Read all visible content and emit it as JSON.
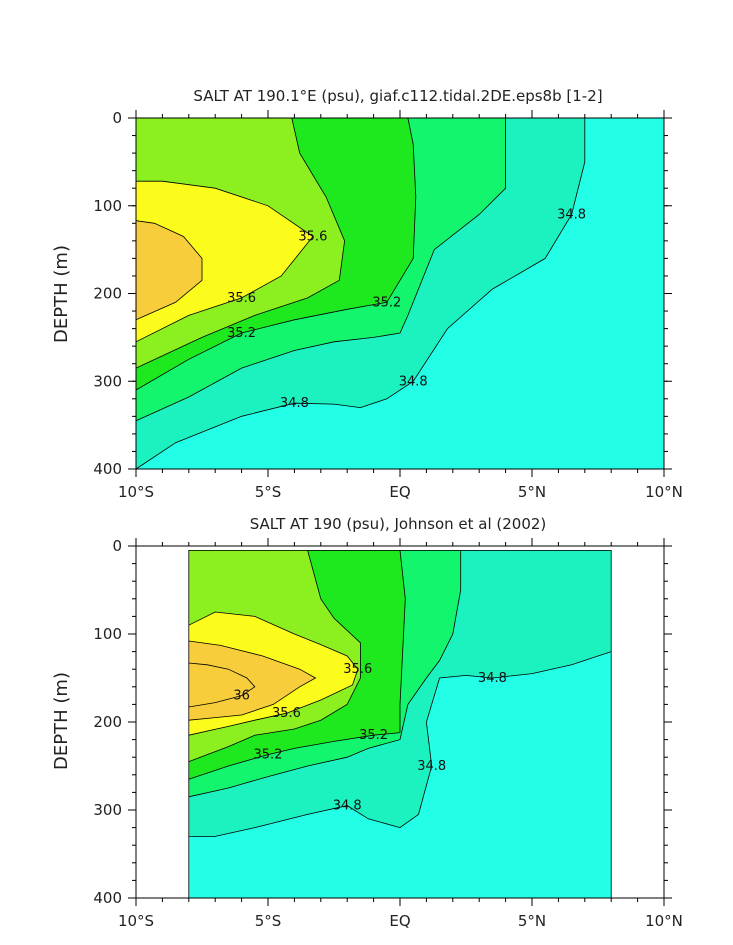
{
  "colors": {
    "s_lt_34_8": "#22ffe6",
    "s_34_8_35_0": "#1cf2c0",
    "s_35_0_35_2": "#14f56e",
    "s_35_2_35_4": "#1ee81e",
    "s_35_4_35_6": "#8cf020",
    "s_35_6_35_8": "#fbfb1c",
    "s_gt_35_8": "#f8cd3c",
    "open_cyan": "#1cf8f8"
  },
  "chart_data": [
    {
      "type": "heatmap",
      "title": "SALT AT 190.1°E (psu), giaf.c112.tidal.2DE.eps8b [1-2]",
      "ylabel": "DEPTH (m)",
      "xlabel": "",
      "x_ticks": [
        "10°S",
        "5°S",
        "EQ",
        "5°N",
        "10°N"
      ],
      "x_tick_values": [
        -10,
        -5,
        0,
        5,
        10
      ],
      "xlim": [
        -10,
        10
      ],
      "y_ticks": [
        "0",
        "100",
        "200",
        "300",
        "400"
      ],
      "y_tick_values": [
        0,
        100,
        200,
        300,
        400
      ],
      "ylim": [
        400,
        0
      ],
      "contour_labels": [
        "35.6",
        "35.6",
        "35.2",
        "35.2",
        "34.8",
        "34.8",
        "34.8"
      ],
      "contours": [
        {
          "level": 34.8,
          "points": [
            [
              -10,
              400
            ],
            [
              -8.5,
              370
            ],
            [
              -6,
              340
            ],
            [
              -4,
              325
            ],
            [
              -2.5,
              326
            ],
            [
              -1.5,
              330
            ],
            [
              -0.5,
              320
            ],
            [
              0.5,
              300
            ],
            [
              1.8,
              240
            ],
            [
              3.5,
              195
            ],
            [
              5.5,
              160
            ],
            [
              6.5,
              110
            ],
            [
              7,
              50
            ],
            [
              7,
              0
            ]
          ]
        },
        {
          "level": 35.0,
          "points": [
            [
              -10,
              345
            ],
            [
              -8,
              318
            ],
            [
              -6,
              285
            ],
            [
              -4,
              265
            ],
            [
              -2.5,
              255
            ],
            [
              -1,
              250
            ],
            [
              0,
              245
            ],
            [
              0.3,
              225
            ],
            [
              1.3,
              150
            ],
            [
              3,
              110
            ],
            [
              4,
              80
            ],
            [
              4,
              0
            ]
          ]
        },
        {
          "level": 35.2,
          "points": [
            [
              -10,
              310
            ],
            [
              -8,
              275
            ],
            [
              -6,
              245
            ],
            [
              -4,
              230
            ],
            [
              -2,
              218
            ],
            [
              -0.5,
              210
            ],
            [
              0.5,
              160
            ],
            [
              0.6,
              90
            ],
            [
              0.5,
              30
            ],
            [
              0.3,
              0
            ]
          ]
        },
        {
          "level": 35.4,
          "points": [
            [
              -10,
              285
            ],
            [
              -7.5,
              250
            ],
            [
              -5.5,
              225
            ],
            [
              -3.5,
              205
            ],
            [
              -2.3,
              185
            ],
            [
              -2.1,
              140
            ],
            [
              -2.8,
              90
            ],
            [
              -3.8,
              40
            ],
            [
              -4.1,
              0
            ]
          ]
        },
        {
          "level": 35.6,
          "points": [
            [
              -10,
              255
            ],
            [
              -8,
              225
            ],
            [
              -6,
              205
            ],
            [
              -4.5,
              180
            ],
            [
              -3.3,
              135
            ],
            [
              -5,
              100
            ],
            [
              -7,
              80
            ],
            [
              -9,
              72
            ],
            [
              -10,
              72
            ]
          ]
        },
        {
          "level": 35.8,
          "points": [
            [
              -10,
              230
            ],
            [
              -8.5,
              210
            ],
            [
              -7.5,
              185
            ],
            [
              -7.5,
              160
            ],
            [
              -8.2,
              135
            ],
            [
              -9.3,
              120
            ],
            [
              -10,
              117
            ]
          ]
        }
      ],
      "data_extent_x": [
        -10,
        10
      ],
      "data_extent_y": [
        0,
        400
      ]
    },
    {
      "type": "heatmap",
      "title": "SALT AT 190 (psu), Johnson et al (2002)",
      "ylabel": "DEPTH (m)",
      "xlabel": "",
      "x_ticks": [
        "10°S",
        "5°S",
        "EQ",
        "5°N",
        "10°N"
      ],
      "x_tick_values": [
        -10,
        -5,
        0,
        5,
        10
      ],
      "xlim": [
        -10,
        10
      ],
      "y_ticks": [
        "0",
        "100",
        "200",
        "300",
        "400"
      ],
      "y_tick_values": [
        0,
        100,
        200,
        300,
        400
      ],
      "ylim": [
        400,
        0
      ],
      "contour_labels": [
        "35.6",
        "36",
        "35.6",
        "35.2",
        "35.2",
        "34.8",
        "34.8",
        "34.8"
      ],
      "contours": [
        {
          "level": 34.8,
          "points": [
            [
              -8,
              330
            ],
            [
              -7,
              330
            ],
            [
              -5.5,
              320
            ],
            [
              -3.5,
              305
            ],
            [
              -2,
              295
            ],
            [
              -1.2,
              310
            ],
            [
              0,
              320
            ],
            [
              0.7,
              305
            ],
            [
              1.2,
              250
            ],
            [
              1.0,
              200
            ],
            [
              1.5,
              150
            ],
            [
              2.5,
              147
            ],
            [
              3.5,
              150
            ],
            [
              5,
              145
            ],
            [
              6.5,
              135
            ],
            [
              8,
              120
            ]
          ]
        },
        {
          "level": 35.0,
          "points": [
            [
              -8,
              285
            ],
            [
              -6.5,
              275
            ],
            [
              -5,
              262
            ],
            [
              -3.5,
              250
            ],
            [
              -2,
              240
            ],
            [
              -1.2,
              230
            ],
            [
              0,
              220
            ],
            [
              0.3,
              180
            ],
            [
              1,
              150
            ],
            [
              1.5,
              130
            ],
            [
              2,
              100
            ],
            [
              2.3,
              50
            ],
            [
              2.3,
              5
            ]
          ]
        },
        {
          "level": 35.2,
          "points": [
            [
              -8,
              265
            ],
            [
              -6.5,
              250
            ],
            [
              -5,
              237
            ],
            [
              -4,
              230
            ],
            [
              -2.5,
              222
            ],
            [
              -1,
              215
            ],
            [
              0,
              212
            ],
            [
              0,
              180
            ],
            [
              0.2,
              60
            ],
            [
              0,
              5
            ]
          ]
        },
        {
          "level": 35.4,
          "points": [
            [
              -8,
              245
            ],
            [
              -6.5,
              228
            ],
            [
              -5.5,
              215
            ],
            [
              -4,
              208
            ],
            [
              -3,
              198
            ],
            [
              -2,
              180
            ],
            [
              -1.5,
              150
            ],
            [
              -1.5,
              110
            ],
            [
              -2.5,
              82
            ],
            [
              -3,
              60
            ],
            [
              -3.5,
              5
            ]
          ]
        },
        {
          "level": 35.6,
          "points": [
            [
              -8,
              215
            ],
            [
              -6.5,
              205
            ],
            [
              -5.5,
              198
            ],
            [
              -4.3,
              190
            ],
            [
              -3,
              175
            ],
            [
              -1.8,
              158
            ],
            [
              -1.6,
              140
            ],
            [
              -2,
              125
            ],
            [
              -3,
              112
            ],
            [
              -4,
              100
            ],
            [
              -5.5,
              80
            ],
            [
              -7,
              75
            ],
            [
              -8,
              90
            ]
          ]
        },
        {
          "level": 35.8,
          "points": [
            [
              -8,
              198
            ],
            [
              -7,
              195
            ],
            [
              -6,
              192
            ],
            [
              -4.8,
              180
            ],
            [
              -3.8,
              160
            ],
            [
              -3.2,
              150
            ],
            [
              -3.8,
              140
            ],
            [
              -5.2,
              125
            ],
            [
              -6.8,
              113
            ],
            [
              -8,
              108
            ]
          ]
        },
        {
          "level": 36.0,
          "points": [
            [
              -8,
              183
            ],
            [
              -7,
              178
            ],
            [
              -6,
              170
            ],
            [
              -5.5,
              160
            ],
            [
              -5.8,
              150
            ],
            [
              -6.5,
              140
            ],
            [
              -7.3,
              135
            ],
            [
              -8,
              133
            ]
          ]
        }
      ],
      "data_extent_x": [
        -8,
        8
      ],
      "data_extent_y": [
        5,
        400
      ]
    }
  ]
}
